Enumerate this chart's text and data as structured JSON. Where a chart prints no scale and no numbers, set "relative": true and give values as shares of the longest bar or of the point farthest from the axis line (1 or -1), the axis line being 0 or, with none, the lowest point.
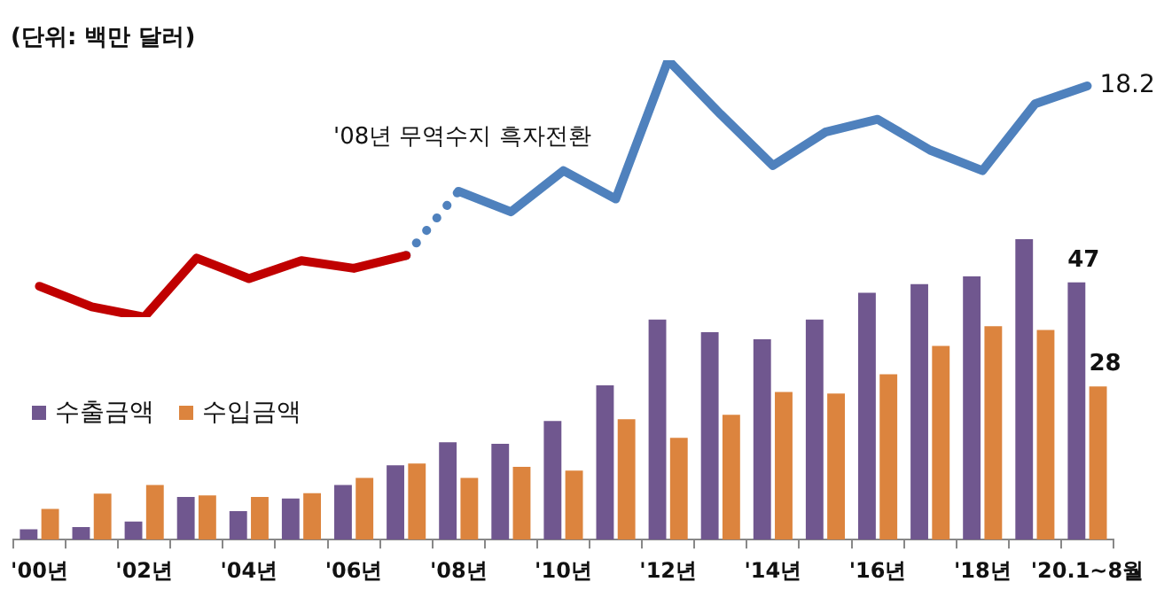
{
  "chart_data": [
    {
      "type": "bar",
      "title": "(단위: 백만 달러)",
      "categories": [
        "'00년",
        null,
        "'02년",
        null,
        "'04년",
        null,
        "'06년",
        null,
        "'08년",
        null,
        "'10년",
        null,
        "'12년",
        null,
        "'14년",
        null,
        "'16년",
        null,
        "'18년",
        null,
        "'20.1~8월"
      ],
      "series": [
        {
          "name": "수출금액",
          "color": "#70578f",
          "values": [
            1.9,
            2.3,
            3.3,
            7.8,
            5.2,
            7.5,
            10.0,
            13.6,
            17.8,
            17.5,
            21.7,
            28.2,
            40.2,
            37.9,
            36.6,
            40.2,
            45.1,
            46.7,
            48.1,
            54.9,
            47
          ],
          "value_labels": [
            null,
            null,
            null,
            null,
            null,
            null,
            null,
            null,
            null,
            null,
            null,
            null,
            null,
            null,
            null,
            null,
            null,
            null,
            null,
            null,
            "47"
          ]
        },
        {
          "name": "수입금액",
          "color": "#dc843e",
          "values": [
            5.6,
            8.4,
            10.0,
            8.1,
            7.8,
            8.5,
            11.3,
            13.9,
            11.3,
            13.3,
            12.6,
            22.0,
            18.6,
            22.8,
            27.0,
            26.7,
            30.2,
            35.4,
            39.0,
            38.3,
            28
          ],
          "value_labels": [
            null,
            null,
            null,
            null,
            null,
            null,
            null,
            null,
            null,
            null,
            null,
            null,
            null,
            null,
            null,
            null,
            null,
            null,
            null,
            null,
            "28"
          ]
        }
      ],
      "legend": "left"
    },
    {
      "type": "line",
      "relative": true,
      "tick_labels": false,
      "marker": "none",
      "annotations": [
        "'08년 무역수지 흑자전환",
        {
          "text": "18.2",
          "x": "'20.1~8월"
        }
      ],
      "categories": [
        "'00년",
        null,
        "'02년",
        null,
        "'04년",
        null,
        "'06년",
        null,
        "'08년",
        null,
        "'10년",
        null,
        "'12년",
        null,
        "'14년",
        null,
        "'16년",
        null,
        "'18년",
        null,
        "'20.1~8월"
      ],
      "series": [
        {
          "color": "#c00000",
          "values": [
            0.12,
            0.04,
            0,
            0.23,
            0.15,
            0.22,
            0.19,
            0.24,
            null,
            null,
            null,
            null,
            null,
            null,
            null,
            null,
            null,
            null,
            null,
            null,
            null
          ]
        },
        {
          "color": "#4f81bd",
          "line_style": "dotted",
          "values": [
            null,
            null,
            null,
            null,
            null,
            null,
            null,
            0.24,
            0.49,
            null,
            null,
            null,
            null,
            null,
            null,
            null,
            null,
            null,
            null,
            null,
            null
          ]
        },
        {
          "color": "#4f81bd",
          "values": [
            null,
            null,
            null,
            null,
            null,
            null,
            null,
            null,
            0.49,
            0.41,
            0.57,
            0.46,
            1,
            0.79,
            0.59,
            0.72,
            0.77,
            0.65,
            0.57,
            0.83,
            0.9
          ]
        }
      ]
    }
  ]
}
